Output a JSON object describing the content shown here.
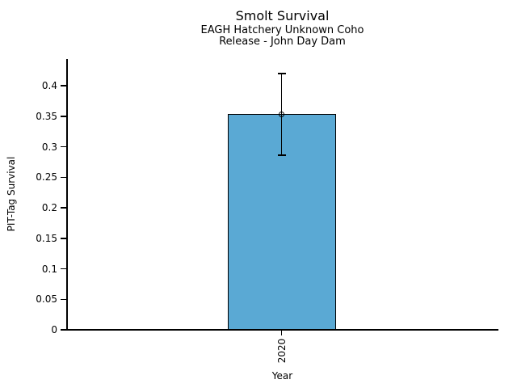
{
  "chart_data": {
    "type": "bar",
    "title": "Smolt Survival",
    "subtitle1": "EAGH Hatchery Unknown Coho",
    "subtitle2": "Release - John Day Dam",
    "xlabel": "Year",
    "ylabel": "PIT-Tag Survival",
    "categories": [
      "2020"
    ],
    "values": [
      0.353
    ],
    "error_low": [
      0.286
    ],
    "error_high": [
      0.42
    ],
    "ytick_values": [
      0,
      0.05,
      0.1,
      0.15,
      0.2,
      0.25,
      0.3,
      0.35,
      0.4
    ],
    "ytick_labels": [
      "0",
      "0.05",
      "0.1",
      "0.15",
      "0.2",
      "0.25",
      "0.3",
      "0.35",
      "0.4"
    ],
    "ylim": [
      0,
      0.444
    ],
    "grid": false,
    "legend": "none",
    "marker": "open-circle",
    "bar_color": "#5AA9D4",
    "bar_edge_color": "#000000",
    "errorbar_color": "#000000",
    "text_color": "#000000",
    "background_color": "#ffffff"
  }
}
